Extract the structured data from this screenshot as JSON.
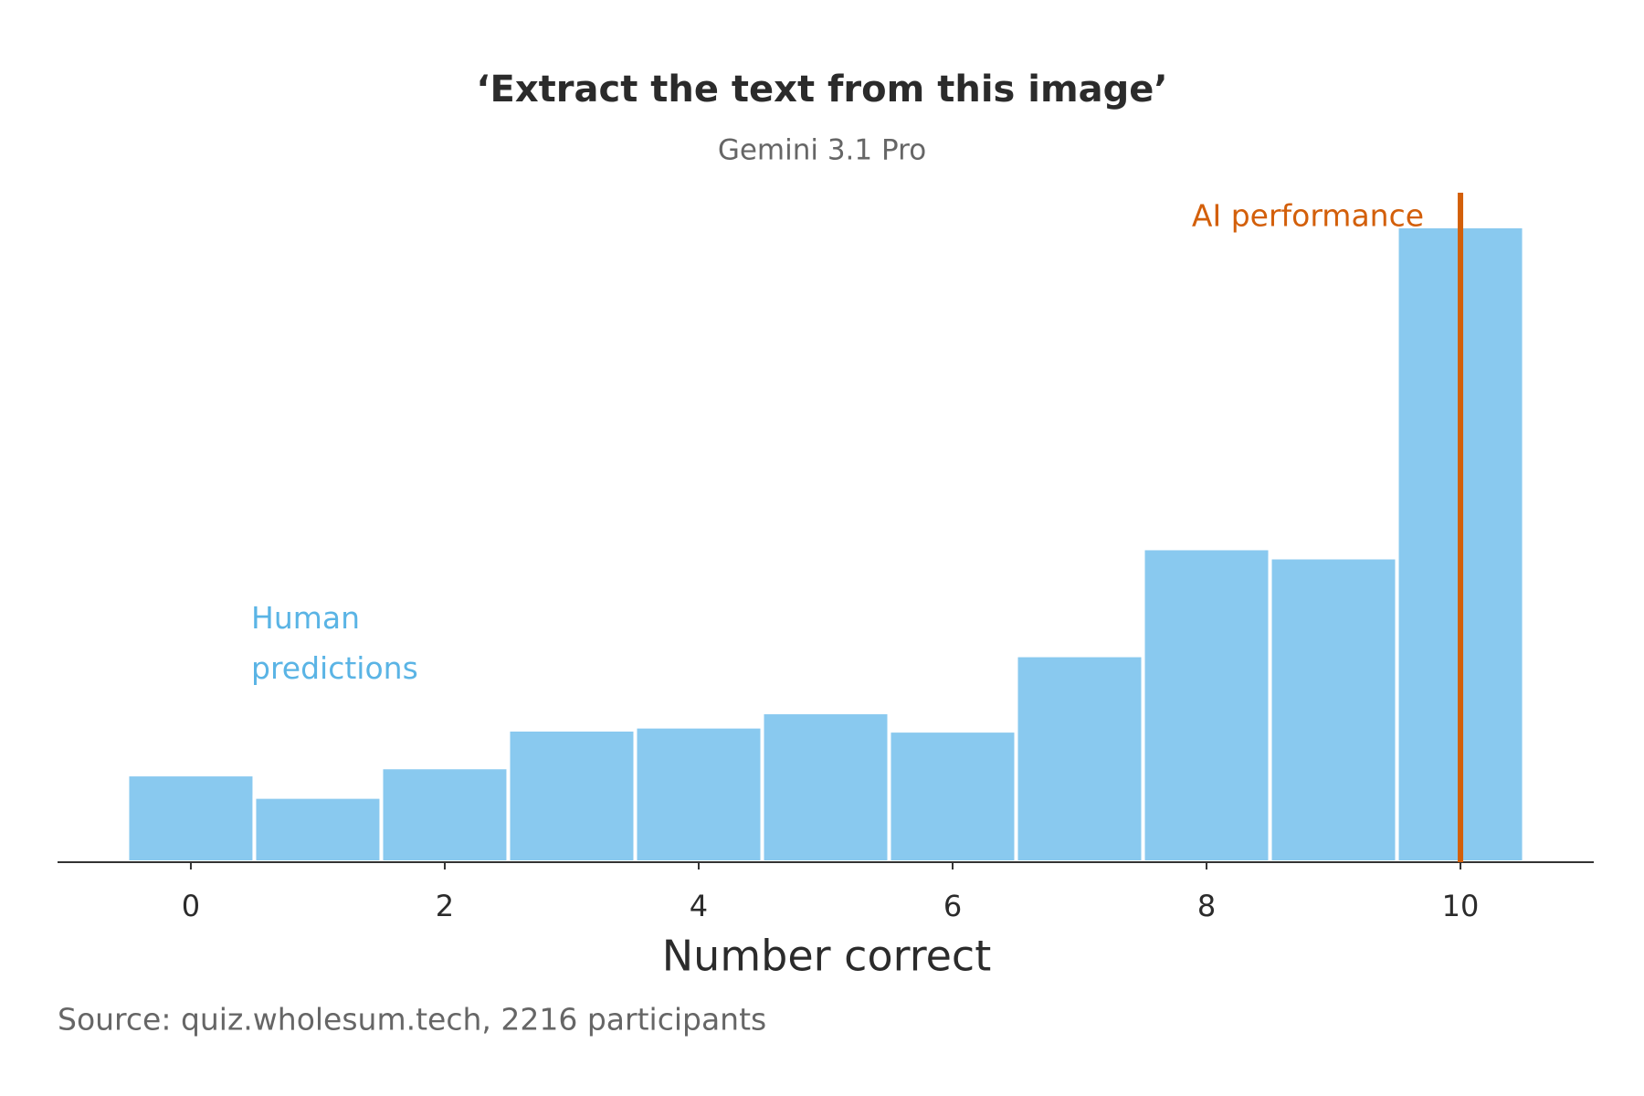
{
  "chart_data": {
    "type": "histogram",
    "title": "‘Extract the text from this image’",
    "subtitle": "Gemini 3.1 Pro",
    "x_label": "Number correct",
    "source": "Source: quiz.wholesum.tech, 2216 participants",
    "bins": [
      -0.5,
      0.5,
      1.5,
      2.5,
      3.5,
      4.5,
      5.5,
      6.5,
      7.5,
      8.5,
      9.5,
      10.5
    ],
    "counts": [
      86,
      64,
      93,
      130,
      133,
      147,
      129,
      203,
      308,
      299,
      624
    ],
    "series_label": "Human predictions",
    "color": "#89c9ef",
    "label_color": "#5ab4e5",
    "xlim": [
      -1.05,
      11.05
    ],
    "xticks": [
      0,
      2,
      4,
      6,
      8,
      10
    ],
    "ylim": [
      0,
      650
    ],
    "reference_line": {
      "value": 10,
      "label": "AI performance",
      "color": "#d35f0a"
    }
  }
}
